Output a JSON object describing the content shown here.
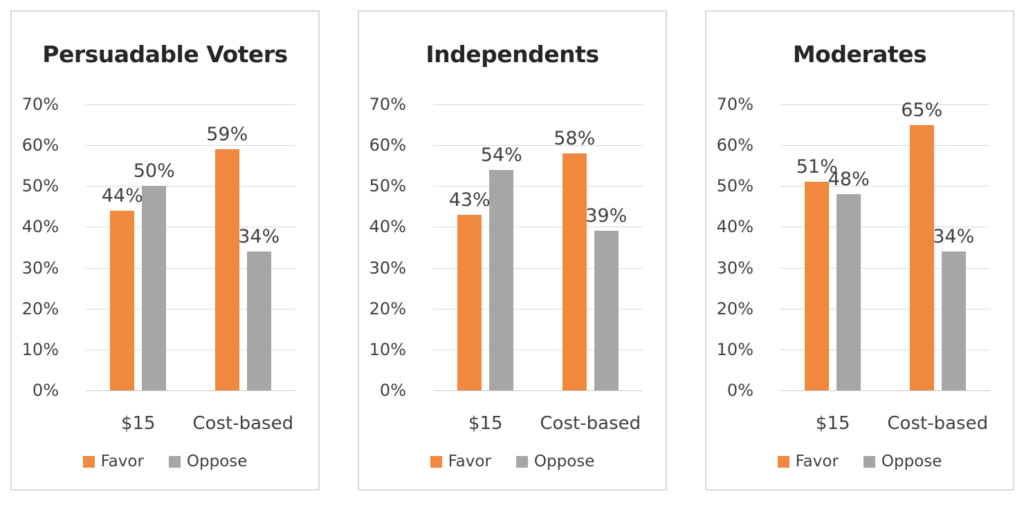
{
  "colors": {
    "favor": "#F0883E",
    "oppose": "#A6A6A6",
    "gridline": "#D9D9D9",
    "axis_line": "#C6C6C6",
    "title_text": "#262626",
    "label_text": "#3F3F3F",
    "panel_border": "#D9D9D9",
    "background": "#FFFFFF"
  },
  "y_axis": {
    "ticks": [
      "70%",
      "60%",
      "50%",
      "40%",
      "30%",
      "20%",
      "10%",
      "0%"
    ],
    "max": 70,
    "min": 0
  },
  "legend": {
    "items": [
      {
        "label": "Favor",
        "color_key": "favor"
      },
      {
        "label": "Oppose",
        "color_key": "oppose"
      }
    ]
  },
  "chart_data": [
    {
      "type": "bar",
      "title": "Persuadable Voters",
      "categories": [
        "$15",
        "Cost-based"
      ],
      "series": [
        {
          "name": "Favor",
          "values": [
            44,
            59
          ],
          "labels": [
            "44%",
            "59%"
          ]
        },
        {
          "name": "Oppose",
          "values": [
            50,
            34
          ],
          "labels": [
            "50%",
            "34%"
          ]
        }
      ],
      "xlabel": "",
      "ylabel": "",
      "ylim": [
        0,
        70
      ],
      "grid": true,
      "legend_position": "bottom"
    },
    {
      "type": "bar",
      "title": "Independents",
      "categories": [
        "$15",
        "Cost-based"
      ],
      "series": [
        {
          "name": "Favor",
          "values": [
            43,
            58
          ],
          "labels": [
            "43%",
            "58%"
          ]
        },
        {
          "name": "Oppose",
          "values": [
            54,
            39
          ],
          "labels": [
            "54%",
            "39%"
          ]
        }
      ],
      "xlabel": "",
      "ylabel": "",
      "ylim": [
        0,
        70
      ],
      "grid": true,
      "legend_position": "bottom"
    },
    {
      "type": "bar",
      "title": "Moderates",
      "categories": [
        "$15",
        "Cost-based"
      ],
      "series": [
        {
          "name": "Favor",
          "values": [
            51,
            65
          ],
          "labels": [
            "51%",
            "65%"
          ]
        },
        {
          "name": "Oppose",
          "values": [
            48,
            34
          ],
          "labels": [
            "48%",
            "34%"
          ]
        }
      ],
      "xlabel": "",
      "ylabel": "",
      "ylim": [
        0,
        70
      ],
      "grid": true,
      "legend_position": "bottom"
    }
  ]
}
